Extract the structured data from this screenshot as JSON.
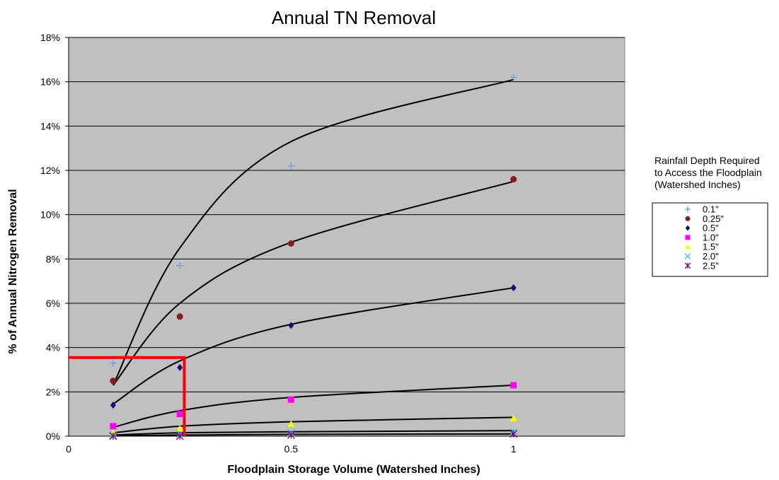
{
  "chart_data": {
    "type": "scatter",
    "title": "Annual TN Removal",
    "xlabel": "Floodplain Storage Volume (Watershed Inches)",
    "ylabel": "% of Annual Nitrogen Removal",
    "xlim": [
      0,
      1.25
    ],
    "ylim": [
      0,
      18
    ],
    "x_ticks": [
      "0",
      "0.5",
      "1"
    ],
    "y_ticks": [
      "0%",
      "2%",
      "4%",
      "6%",
      "8%",
      "10%",
      "12%",
      "14%",
      "16%",
      "18%"
    ],
    "grid": "horizontal",
    "plot_background": "#c0c0c0",
    "legend_title": "Rainfall Depth Required to Access the Floodplain (Watershed Inches)",
    "legend_title_lines": [
      "Rainfall Depth Required",
      "to Access the Floodplain",
      "(Watershed Inches)"
    ],
    "legend_position": "right",
    "x": [
      0.1,
      0.25,
      0.5,
      1.0
    ],
    "series": [
      {
        "name": "0.1\"",
        "marker": "plus",
        "color": "#6f9be0",
        "values": [
          3.3,
          7.7,
          12.2,
          16.2
        ],
        "trend": [
          2.3,
          8.5,
          13.3,
          16.1
        ]
      },
      {
        "name": "0.25\"",
        "marker": "circle",
        "color": "#8b1a1a",
        "values": [
          2.5,
          5.4,
          8.7,
          11.6
        ],
        "trend": [
          2.3,
          6.0,
          8.75,
          11.5
        ]
      },
      {
        "name": "0.5\"",
        "marker": "diamond",
        "color": "#0c0c7a",
        "values": [
          1.4,
          3.1,
          5.0,
          6.7
        ],
        "trend": [
          1.45,
          3.4,
          5.05,
          6.7
        ]
      },
      {
        "name": "1.0\"",
        "marker": "square",
        "color": "#ff00ff",
        "values": [
          0.45,
          1.0,
          1.65,
          2.3
        ],
        "trend": [
          0.4,
          1.15,
          1.75,
          2.3
        ]
      },
      {
        "name": "1.5\"",
        "marker": "triangle",
        "color": "#ffff00",
        "values": [
          0.15,
          0.35,
          0.55,
          0.8
        ],
        "trend": [
          0.15,
          0.45,
          0.65,
          0.85
        ]
      },
      {
        "name": "2.0\"",
        "marker": "x",
        "color": "#33cccc",
        "values": [
          0.05,
          0.1,
          0.15,
          0.2
        ],
        "trend": [
          0.05,
          0.15,
          0.2,
          0.25
        ]
      },
      {
        "name": "2.5\"",
        "marker": "star",
        "color": "#800080",
        "values": [
          0.0,
          0.0,
          0.05,
          0.1
        ],
        "trend": [
          0.02,
          0.05,
          0.08,
          0.1
        ]
      }
    ],
    "annotation": {
      "color": "#ff0000",
      "x": 0.26,
      "y": 3.55
    }
  }
}
